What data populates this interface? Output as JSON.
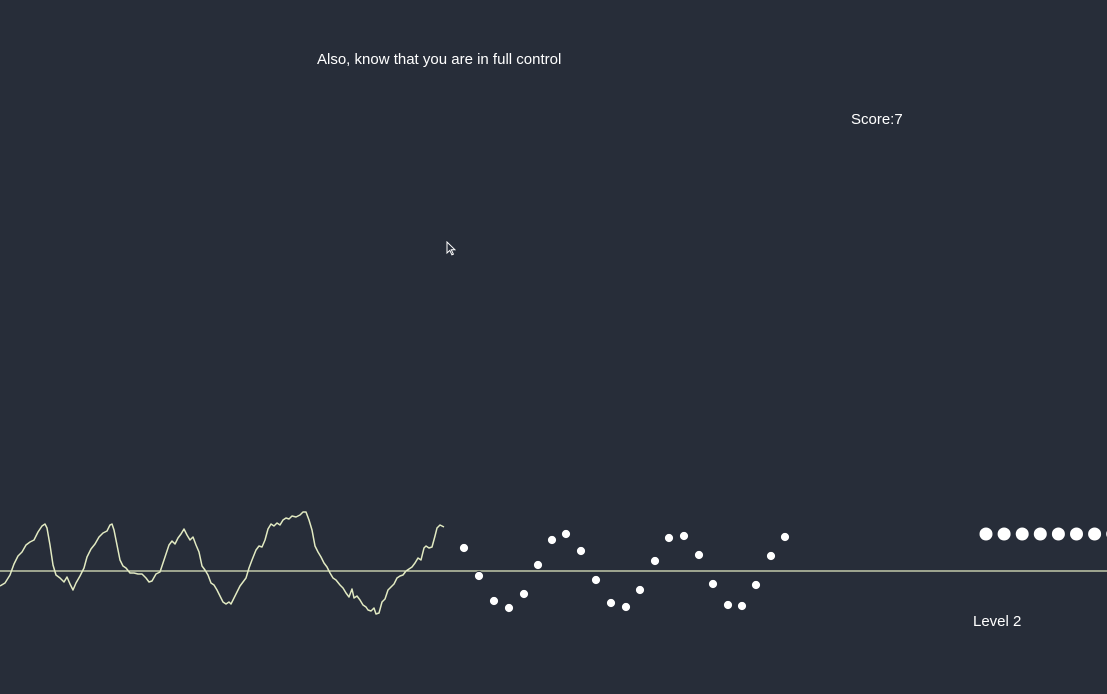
{
  "game": {
    "instruction": "Also, know that you are in full control",
    "score_label": "Score:",
    "score_value": "7",
    "level_label": "Level 2",
    "lives_count": 8
  },
  "colors": {
    "background": "#272d39",
    "line": "#e2eac2",
    "text": "#ffffff",
    "dot_fill": "#ffffff",
    "dot_stroke": "#272d39"
  },
  "icons": {
    "cursor": "mouse-pointer-icon",
    "life": "life-dot-icon",
    "target": "target-dot-icon"
  }
}
